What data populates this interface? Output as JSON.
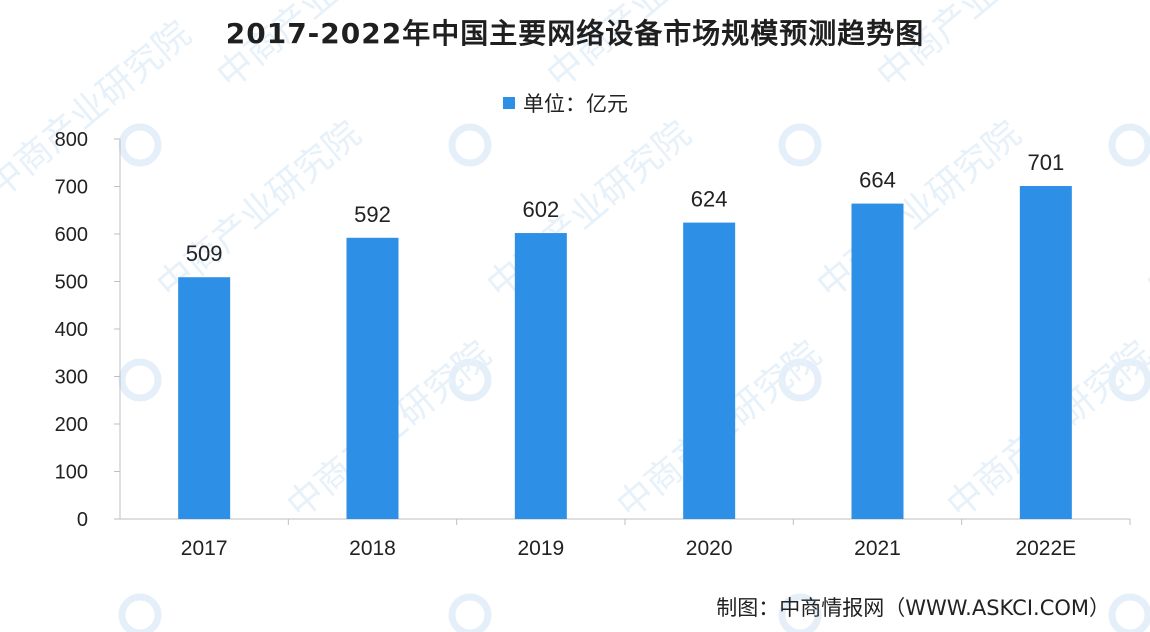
{
  "chart_data": {
    "type": "bar",
    "title": "2017-2022年中国主要网络设备市场规模预测趋势图",
    "categories": [
      "2017",
      "2018",
      "2019",
      "2020",
      "2021",
      "2022E"
    ],
    "series": [
      {
        "name": "单位：亿元",
        "values": [
          509,
          592,
          602,
          624,
          664,
          701
        ]
      }
    ],
    "data_labels": [
      "509",
      "592",
      "602",
      "624",
      "664",
      "701"
    ],
    "xlabel": "",
    "ylabel": "",
    "ylim": [
      0,
      800
    ],
    "yticks": [
      0,
      100,
      200,
      300,
      400,
      500,
      600,
      700,
      800
    ],
    "grid": false,
    "legend_position": "top-center"
  },
  "colors": {
    "bar": "#2e8fe6",
    "axis": "#bfbfbf",
    "text": "#222222",
    "watermark": "#d6e6f5"
  },
  "source": "制图：中商情报网（WWW.ASKCI.COM）",
  "watermark": {
    "text": "中商产业研究院",
    "logo_icon": "askci-logo-icon"
  }
}
